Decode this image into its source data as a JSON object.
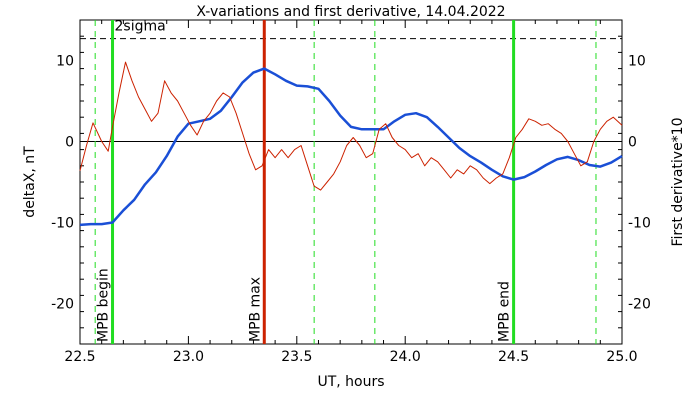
{
  "chart_data": {
    "type": "line",
    "title": "X-variations and first derivative, 14.04.2022",
    "xlabel": "UT, hours",
    "ylabel_left": "deltaX, nT",
    "ylabel_right": "First derivative*10",
    "xlim": [
      22.5,
      25.0
    ],
    "ylim": [
      -25,
      15
    ],
    "x_ticks": [
      22.5,
      23.0,
      23.5,
      24.0,
      24.5,
      25.0
    ],
    "x_tick_labels": [
      "22.5",
      "23.0",
      "23.5",
      "24.0",
      "24.5",
      "25.0"
    ],
    "y_ticks": [
      -20,
      -10,
      0,
      10
    ],
    "y_tick_labels": [
      "-20",
      "-10",
      "0",
      "10"
    ],
    "zero_line": 0,
    "sigma_level": 12.7,
    "sigma_label": "2sigma",
    "colors": {
      "deltaX": "#1a4fd6",
      "derivative": "#cc2200",
      "mpb_green": "#22dd22",
      "mpb_max": "#cc2200",
      "dashed_green": "#22dd22",
      "right_axis_label": "#cc2200",
      "left_axis_label": "#1a4fd6"
    },
    "series": [
      {
        "name": "deltaX",
        "x": [
          22.5,
          22.55,
          22.6,
          22.65,
          22.7,
          22.75,
          22.8,
          22.85,
          22.9,
          22.95,
          23.0,
          23.05,
          23.1,
          23.15,
          23.2,
          23.25,
          23.3,
          23.35,
          23.4,
          23.45,
          23.5,
          23.55,
          23.6,
          23.65,
          23.7,
          23.75,
          23.8,
          23.85,
          23.9,
          23.95,
          24.0,
          24.05,
          24.1,
          24.15,
          24.2,
          24.25,
          24.3,
          24.35,
          24.4,
          24.45,
          24.5,
          24.55,
          24.6,
          24.65,
          24.7,
          24.75,
          24.8,
          24.85,
          24.9,
          24.95,
          25.0
        ],
        "y": [
          -10.3,
          -10.2,
          -10.2,
          -10.0,
          -8.5,
          -7.2,
          -5.3,
          -3.8,
          -1.8,
          0.6,
          2.2,
          2.5,
          2.8,
          3.8,
          5.5,
          7.3,
          8.5,
          9.0,
          8.3,
          7.5,
          6.9,
          6.8,
          6.5,
          5.0,
          3.2,
          1.8,
          1.5,
          1.5,
          1.5,
          2.5,
          3.3,
          3.5,
          3.0,
          1.8,
          0.5,
          -0.8,
          -1.8,
          -2.6,
          -3.5,
          -4.3,
          -4.7,
          -4.4,
          -3.7,
          -2.9,
          -2.2,
          -1.9,
          -2.3,
          -2.9,
          -3.1,
          -2.6,
          -1.8
        ]
      },
      {
        "name": "First derivative*10",
        "x": [
          22.5,
          22.53,
          22.56,
          22.6,
          22.63,
          22.65,
          22.68,
          22.71,
          22.74,
          22.77,
          22.8,
          22.83,
          22.86,
          22.89,
          22.92,
          22.95,
          22.98,
          23.01,
          23.04,
          23.07,
          23.1,
          23.13,
          23.16,
          23.19,
          23.22,
          23.25,
          23.28,
          23.31,
          23.34,
          23.37,
          23.4,
          23.43,
          23.46,
          23.49,
          23.52,
          23.55,
          23.58,
          23.61,
          23.64,
          23.67,
          23.7,
          23.73,
          23.76,
          23.79,
          23.82,
          23.85,
          23.88,
          23.91,
          23.94,
          23.97,
          24.0,
          24.03,
          24.06,
          24.09,
          24.12,
          24.15,
          24.18,
          24.21,
          24.24,
          24.27,
          24.3,
          24.33,
          24.36,
          24.39,
          24.42,
          24.45,
          24.48,
          24.51,
          24.54,
          24.57,
          24.6,
          24.63,
          24.66,
          24.69,
          24.72,
          24.75,
          24.78,
          24.81,
          24.84,
          24.87,
          24.9,
          24.93,
          24.96,
          25.0
        ],
        "y": [
          -3.6,
          -0.5,
          2.3,
          0.0,
          -1.2,
          1.8,
          6.0,
          9.8,
          7.5,
          5.5,
          4.0,
          2.5,
          3.5,
          7.5,
          6.0,
          5.0,
          3.5,
          2.0,
          0.8,
          2.5,
          3.5,
          5.0,
          6.0,
          5.5,
          3.5,
          1.0,
          -1.5,
          -3.5,
          -3.0,
          -1.0,
          -2.0,
          -1.0,
          -2.0,
          -1.0,
          -0.5,
          -3.0,
          -5.5,
          -6.0,
          -5.0,
          -4.0,
          -2.5,
          -0.5,
          0.5,
          -0.5,
          -2.0,
          -1.5,
          1.5,
          2.2,
          0.5,
          -0.5,
          -1.0,
          -2.0,
          -1.5,
          -3.0,
          -2.0,
          -2.5,
          -3.5,
          -4.5,
          -3.5,
          -4.0,
          -3.0,
          -3.5,
          -4.5,
          -5.2,
          -4.5,
          -4.0,
          -2.0,
          0.5,
          1.5,
          2.8,
          2.5,
          2.0,
          2.2,
          1.5,
          1.0,
          0.0,
          -1.5,
          -3.0,
          -2.5,
          0.0,
          1.5,
          2.5,
          3.0,
          2.0
        ]
      }
    ],
    "markers": [
      {
        "label": "MPB begin",
        "x": 22.65,
        "color": "#22dd22"
      },
      {
        "label": "MPB max",
        "x": 23.35,
        "color": "#cc2200"
      },
      {
        "label": "MPB end",
        "x": 24.5,
        "color": "#22dd22"
      }
    ],
    "dashed_markers": [
      22.57,
      23.58,
      23.86,
      24.88
    ],
    "grid": false,
    "legend": "none"
  }
}
